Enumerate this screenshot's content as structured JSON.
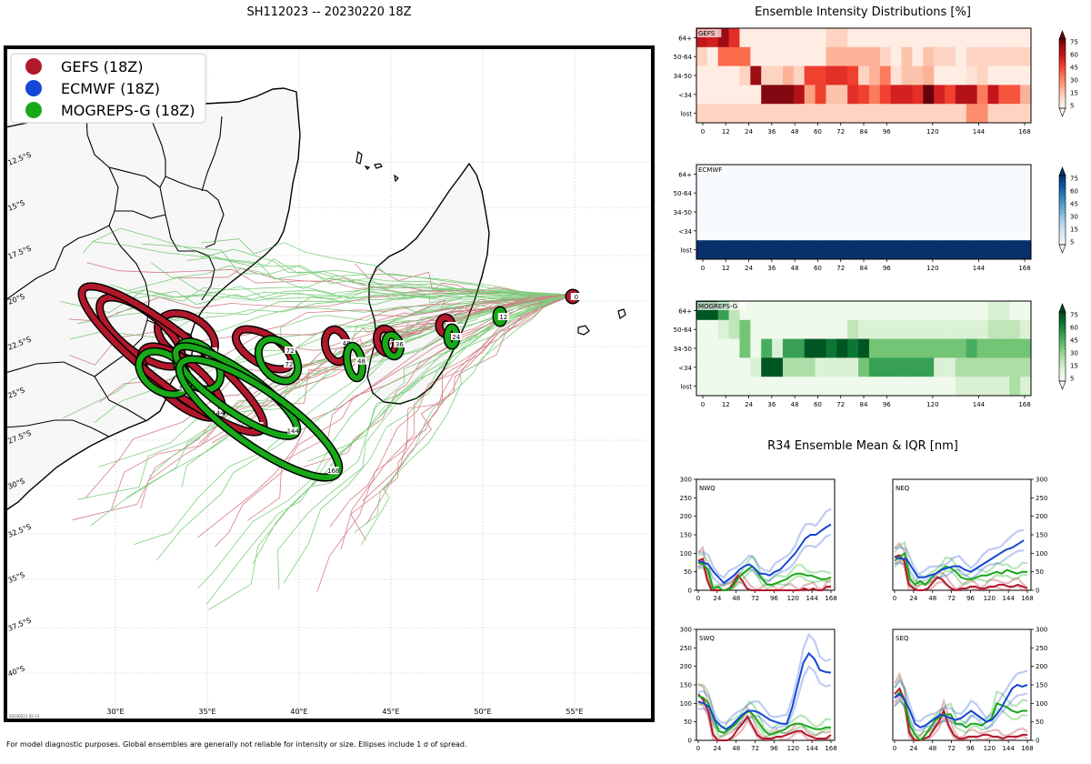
{
  "title": "SH112023 -- 20230220 18Z",
  "footnote": "For model diagnostic purposes. Global ensembles are generally not reliable for intensity or size. Ellipses include 1 σ of spread.",
  "map": {
    "stamp": "20230221 02:13",
    "legend": [
      {
        "label": "GEFS (18Z)",
        "color": "#b2182b"
      },
      {
        "label": "ECMWF (18Z)",
        "color": "#1546d6"
      },
      {
        "label": "MOGREPS-G (18Z)",
        "color": "#18a818"
      }
    ],
    "lon_ticks": [
      "30°E",
      "35°E",
      "40°E",
      "45°E",
      "50°E",
      "55°E"
    ],
    "lat_ticks": [
      "12.5°S",
      "15°S",
      "17.5°S",
      "20°S",
      "22.5°S",
      "25°S",
      "27.5°S",
      "30°S",
      "32.5°S",
      "35°S",
      "37.5°S",
      "40°S"
    ],
    "ellipses": {
      "gefs": [
        {
          "label": "0"
        },
        {
          "label": "24"
        },
        {
          "label": "36"
        },
        {
          "label": "48"
        },
        {
          "label": "72"
        },
        {
          "label": "96"
        },
        {
          "label": "120"
        },
        {
          "label": "144"
        },
        {
          "label": "168"
        }
      ],
      "mogreps": [
        {
          "label": "12"
        },
        {
          "label": "24"
        },
        {
          "label": "36"
        },
        {
          "label": "48"
        },
        {
          "label": "72"
        },
        {
          "label": "96"
        },
        {
          "label": "120"
        },
        {
          "label": "144"
        },
        {
          "label": "168"
        }
      ]
    }
  },
  "intensity": {
    "title": "Ensemble Intensity Distributions [%]",
    "rows": [
      "64+",
      "50-64",
      "34-50",
      "<34",
      "lost"
    ],
    "x_ticks": [
      "0",
      "12",
      "24",
      "36",
      "48",
      "60",
      "72",
      "84",
      "96",
      "120",
      "144",
      "168"
    ],
    "colorbar_ticks": [
      "75",
      "60",
      "45",
      "30",
      "15",
      "5"
    ],
    "panels": [
      {
        "name": "GEFS",
        "cmap": "Reds",
        "grid": [
          [
            70,
            65,
            80,
            60,
            5,
            5,
            5,
            5,
            5,
            5,
            5,
            5,
            15,
            15,
            5,
            5,
            5,
            5,
            5,
            5,
            5,
            5,
            5,
            5,
            5,
            5,
            5,
            5,
            5,
            5,
            5
          ],
          [
            15,
            5,
            45,
            45,
            45,
            5,
            5,
            5,
            5,
            5,
            5,
            5,
            25,
            25,
            25,
            25,
            25,
            15,
            5,
            20,
            5,
            20,
            15,
            15,
            5,
            15,
            15,
            15,
            15,
            15,
            15
          ],
          [
            5,
            5,
            5,
            5,
            15,
            80,
            15,
            15,
            25,
            15,
            55,
            55,
            60,
            60,
            55,
            15,
            25,
            40,
            10,
            20,
            20,
            25,
            5,
            5,
            5,
            10,
            15,
            5,
            5,
            5,
            5
          ],
          [
            5,
            5,
            5,
            5,
            5,
            5,
            85,
            85,
            85,
            75,
            30,
            55,
            20,
            20,
            60,
            55,
            40,
            55,
            65,
            65,
            60,
            90,
            65,
            55,
            75,
            75,
            40,
            70,
            50,
            50,
            25
          ],
          [
            15,
            15,
            15,
            15,
            15,
            15,
            15,
            15,
            15,
            15,
            15,
            15,
            15,
            15,
            15,
            15,
            15,
            15,
            15,
            15,
            15,
            15,
            15,
            15,
            15,
            35,
            35,
            15,
            15,
            15,
            15
          ]
        ]
      },
      {
        "name": "ECMWF",
        "cmap": "Blues",
        "grid": [
          [
            0,
            0,
            0,
            0,
            0,
            0,
            0,
            0,
            0,
            0,
            0,
            0,
            0,
            0,
            0,
            0,
            0,
            0,
            0,
            0,
            0,
            0,
            0,
            0,
            0,
            0,
            0,
            0,
            0,
            0,
            0
          ],
          [
            0,
            0,
            0,
            0,
            0,
            0,
            0,
            0,
            0,
            0,
            0,
            0,
            0,
            0,
            0,
            0,
            0,
            0,
            0,
            0,
            0,
            0,
            0,
            0,
            0,
            0,
            0,
            0,
            0,
            0,
            0
          ],
          [
            0,
            0,
            0,
            0,
            0,
            0,
            0,
            0,
            0,
            0,
            0,
            0,
            0,
            0,
            0,
            0,
            0,
            0,
            0,
            0,
            0,
            0,
            0,
            0,
            0,
            0,
            0,
            0,
            0,
            0,
            0
          ],
          [
            0,
            0,
            0,
            0,
            0,
            0,
            0,
            0,
            0,
            0,
            0,
            0,
            0,
            0,
            0,
            0,
            0,
            0,
            0,
            0,
            0,
            0,
            0,
            0,
            0,
            0,
            0,
            0,
            0,
            0,
            0
          ],
          [
            100,
            100,
            100,
            100,
            100,
            100,
            100,
            100,
            100,
            100,
            100,
            100,
            100,
            100,
            100,
            100,
            100,
            100,
            100,
            100,
            100,
            100,
            100,
            100,
            100,
            100,
            100,
            100,
            100,
            100,
            100
          ]
        ]
      },
      {
        "name": "MOGREPS-G",
        "cmap": "Greens",
        "grid": [
          [
            85,
            85,
            60,
            25,
            5,
            5,
            5,
            5,
            5,
            5,
            5,
            5,
            5,
            5,
            5,
            5,
            5,
            5,
            5,
            5,
            5,
            5,
            5,
            5,
            5,
            5,
            5,
            15,
            15,
            5,
            5
          ],
          [
            5,
            5,
            15,
            25,
            45,
            5,
            5,
            5,
            5,
            5,
            5,
            5,
            5,
            5,
            25,
            15,
            15,
            15,
            15,
            15,
            15,
            15,
            15,
            15,
            15,
            15,
            15,
            25,
            25,
            25,
            15
          ],
          [
            5,
            5,
            5,
            5,
            45,
            5,
            55,
            15,
            60,
            60,
            85,
            85,
            75,
            85,
            75,
            85,
            45,
            45,
            45,
            45,
            45,
            45,
            45,
            45,
            45,
            55,
            45,
            45,
            45,
            45,
            45
          ],
          [
            5,
            5,
            5,
            5,
            5,
            15,
            85,
            85,
            30,
            30,
            30,
            15,
            15,
            15,
            15,
            45,
            60,
            60,
            60,
            60,
            60,
            60,
            15,
            15,
            30,
            30,
            30,
            30,
            30,
            30,
            30
          ],
          [
            5,
            5,
            5,
            5,
            5,
            5,
            5,
            5,
            5,
            5,
            5,
            5,
            5,
            5,
            5,
            5,
            5,
            5,
            5,
            5,
            5,
            5,
            5,
            5,
            15,
            15,
            15,
            15,
            15,
            30,
            15
          ]
        ]
      }
    ]
  },
  "r34": {
    "title": "R34 Ensemble Mean & IQR [nm]",
    "x_ticks": [
      "0",
      "24",
      "48",
      "72",
      "96",
      "120",
      "144",
      "168"
    ],
    "y_ticks": [
      "0",
      "50",
      "100",
      "150",
      "200",
      "250",
      "300"
    ],
    "panels": [
      {
        "name": "NWQ",
        "series": {
          "gefs": [
            80,
            85,
            30,
            0,
            0,
            0,
            0,
            5,
            20,
            40,
            25,
            5,
            0,
            0,
            0,
            0,
            0,
            0,
            0,
            0,
            0,
            0,
            0,
            0,
            5,
            0,
            5,
            0,
            0,
            10,
            10
          ],
          "ecmwf": [
            80,
            75,
            70,
            50,
            35,
            20,
            30,
            40,
            55,
            65,
            70,
            60,
            45,
            45,
            40,
            50,
            55,
            70,
            85,
            100,
            120,
            140,
            150,
            150,
            160,
            170,
            178
          ],
          "mogreps": [
            75,
            70,
            55,
            5,
            10,
            0,
            0,
            10,
            30,
            45,
            55,
            65,
            50,
            30,
            15,
            15,
            20,
            25,
            30,
            40,
            45,
            45,
            40,
            40,
            35,
            30,
            30,
            35
          ]
        }
      },
      {
        "name": "NEQ",
        "series": {
          "gefs": [
            90,
            95,
            80,
            15,
            5,
            0,
            0,
            5,
            20,
            35,
            30,
            15,
            5,
            0,
            5,
            5,
            10,
            10,
            5,
            5,
            10,
            10,
            15,
            15,
            10,
            10,
            15,
            10,
            5
          ],
          "ecmwf": [
            90,
            85,
            85,
            60,
            35,
            35,
            40,
            45,
            55,
            60,
            65,
            65,
            55,
            50,
            60,
            70,
            80,
            90,
            100,
            110,
            115,
            125,
            135
          ],
          "mogreps": [
            80,
            90,
            100,
            30,
            15,
            25,
            15,
            30,
            45,
            55,
            65,
            60,
            50,
            35,
            30,
            30,
            35,
            40,
            40,
            45,
            50,
            45,
            55,
            50,
            45,
            50,
            50
          ]
        }
      },
      {
        "name": "SWQ",
        "series": {
          "gefs": [
            125,
            110,
            80,
            15,
            0,
            0,
            0,
            10,
            30,
            45,
            65,
            40,
            15,
            5,
            5,
            5,
            10,
            10,
            15,
            20,
            25,
            25,
            15,
            10,
            5,
            5,
            5,
            15
          ],
          "ecmwf": [
            105,
            100,
            90,
            55,
            40,
            30,
            40,
            55,
            70,
            80,
            80,
            75,
            65,
            55,
            50,
            45,
            45,
            90,
            150,
            210,
            235,
            220,
            190,
            185,
            183
          ],
          "mogreps": [
            120,
            115,
            100,
            60,
            25,
            20,
            30,
            40,
            55,
            70,
            80,
            65,
            45,
            25,
            15,
            20,
            25,
            30,
            40,
            45,
            45,
            40,
            35,
            30,
            30,
            35,
            35
          ]
        }
      },
      {
        "name": "SEQ",
        "series": {
          "gefs": [
            125,
            140,
            110,
            20,
            0,
            0,
            5,
            10,
            30,
            50,
            80,
            40,
            15,
            5,
            5,
            10,
            10,
            10,
            15,
            15,
            10,
            10,
            5,
            10,
            10,
            10,
            15,
            15
          ],
          "ecmwf": [
            115,
            125,
            110,
            80,
            45,
            35,
            40,
            50,
            60,
            70,
            65,
            60,
            55,
            60,
            70,
            80,
            70,
            60,
            50,
            55,
            70,
            90,
            115,
            140,
            150,
            145,
            150
          ],
          "mogreps": [
            115,
            130,
            105,
            40,
            15,
            0,
            15,
            35,
            55,
            65,
            70,
            70,
            45,
            45,
            35,
            45,
            45,
            40,
            50,
            60,
            100,
            95,
            90,
            80,
            75,
            80,
            80
          ]
        }
      }
    ]
  }
}
